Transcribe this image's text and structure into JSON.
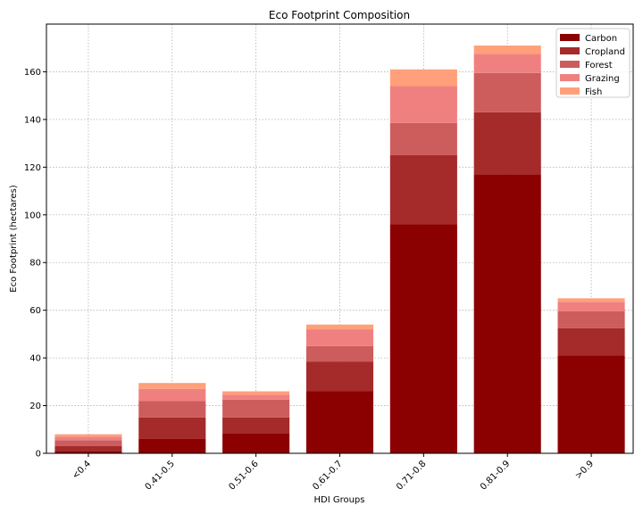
{
  "chart_data": {
    "type": "bar",
    "stacked": true,
    "title": "Eco Footprint Composition",
    "xlabel": "HDI Groups",
    "ylabel": "Eco Footprint (hectares)",
    "categories": [
      "<0.4",
      "0.41-0.5",
      "0.51-0.6",
      "0.61-0.7",
      "0.71-0.8",
      "0.81-0.9",
      ">0.9"
    ],
    "ylim": [
      0,
      180
    ],
    "yticks": [
      0,
      20,
      40,
      60,
      80,
      100,
      120,
      140,
      160
    ],
    "grid": true,
    "legend_position": "top-right",
    "series": [
      {
        "name": "Carbon",
        "color": "#8b0000",
        "values": [
          1,
          6,
          8.5,
          26,
          96,
          117,
          41
        ]
      },
      {
        "name": "Cropland",
        "color": "#a52a2a",
        "values": [
          2,
          9,
          6.5,
          12.5,
          29,
          26,
          11.5
        ]
      },
      {
        "name": "Forest",
        "color": "#cd5c5c",
        "values": [
          2.5,
          7,
          7.5,
          6.5,
          13.5,
          16.5,
          7
        ]
      },
      {
        "name": "Grazing",
        "color": "#f08080",
        "values": [
          1.5,
          5,
          2,
          7,
          15.5,
          8,
          4
        ]
      },
      {
        "name": "Fish",
        "color": "#ffa07a",
        "values": [
          1,
          2.5,
          1.5,
          2,
          7,
          3.5,
          1.5
        ]
      }
    ]
  }
}
